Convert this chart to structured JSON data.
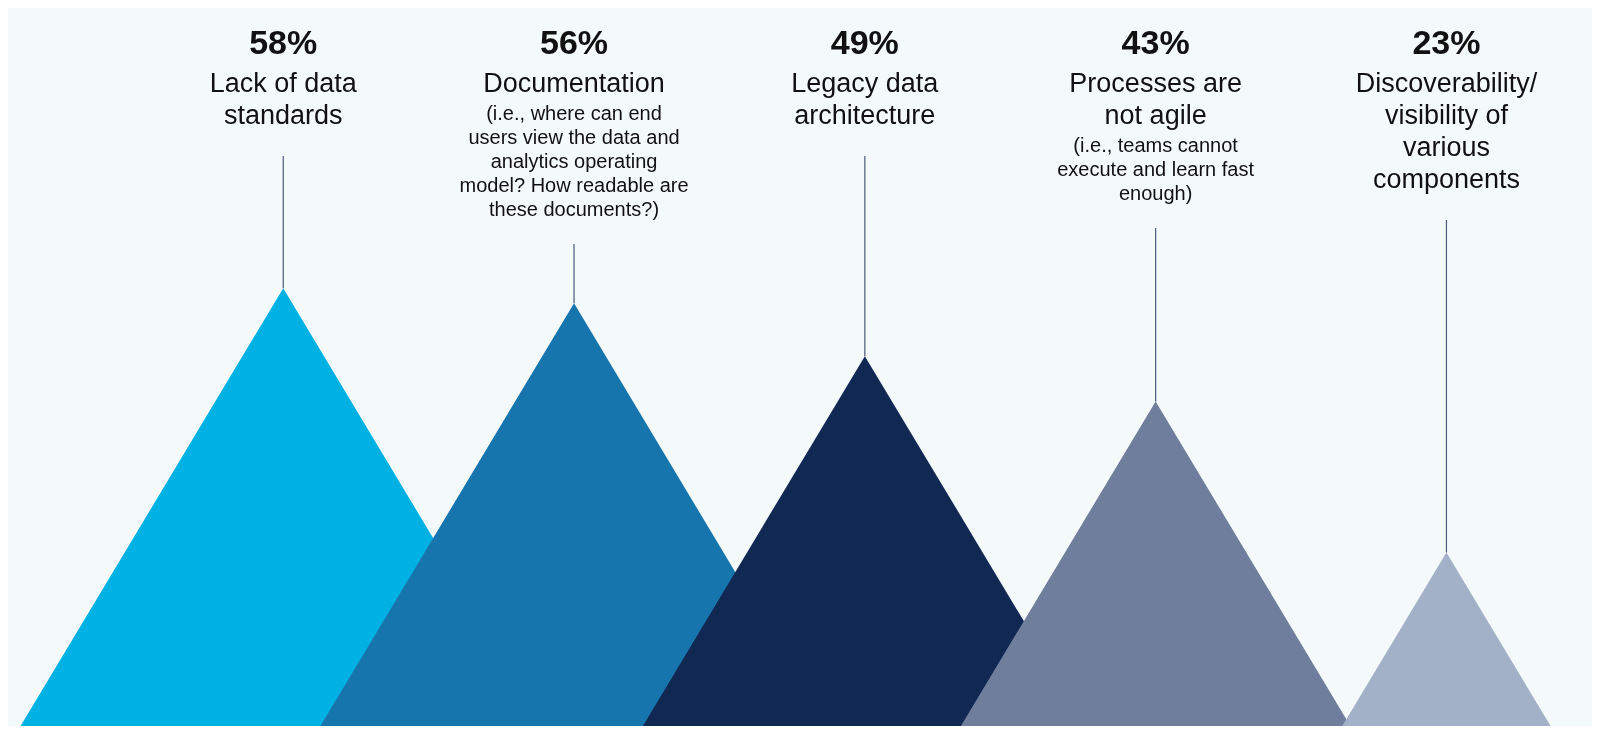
{
  "chart_data": {
    "type": "other",
    "categories": [
      "Lack of data standards",
      "Documentation (i.e., where can end users view the data and analytics operating model? How readable are these documents?)",
      "Legacy data architecture",
      "Processes are not agile (i.e., teams cannot execute and learn fast enough)",
      "Discoverability/ visibility of various components"
    ],
    "values": [
      58,
      56,
      49,
      43,
      23
    ],
    "colors": [
      "#00b2e3",
      "#1775ad",
      "#112853",
      "#6e7e9c",
      "#a3b1c8"
    ],
    "value_labels": [
      "58%",
      "56%",
      "49%",
      "43%",
      "23%"
    ]
  }
}
